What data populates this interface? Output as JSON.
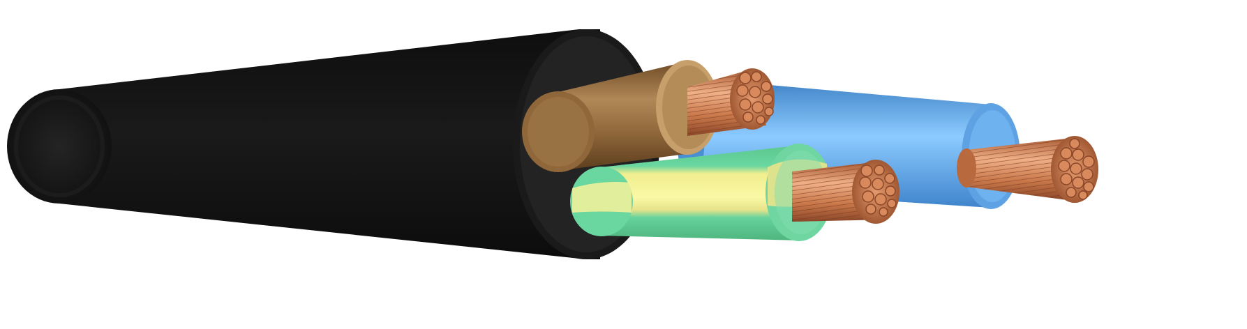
{
  "image": {
    "subject": "three-core-power-cable",
    "background_color": "#ffffff"
  },
  "cable": {
    "sheath_color": "#141414",
    "sheath_edge_color": "#2a2a2a",
    "filler_color": "#1e1e1e",
    "cores": [
      {
        "name": "brown-core",
        "insulation_color": "#8a6236",
        "insulation_highlight": "#b08858"
      },
      {
        "name": "blue-core",
        "insulation_color": "#4f95d8",
        "insulation_highlight": "#8ccbff"
      },
      {
        "name": "green-yellow-core",
        "insulation_color": "#5fcf98",
        "stripe_color": "#f6f29a"
      }
    ],
    "conductor_color": "#c9784a",
    "conductor_highlight": "#f0b088",
    "conductor_shadow": "#8a4628"
  }
}
